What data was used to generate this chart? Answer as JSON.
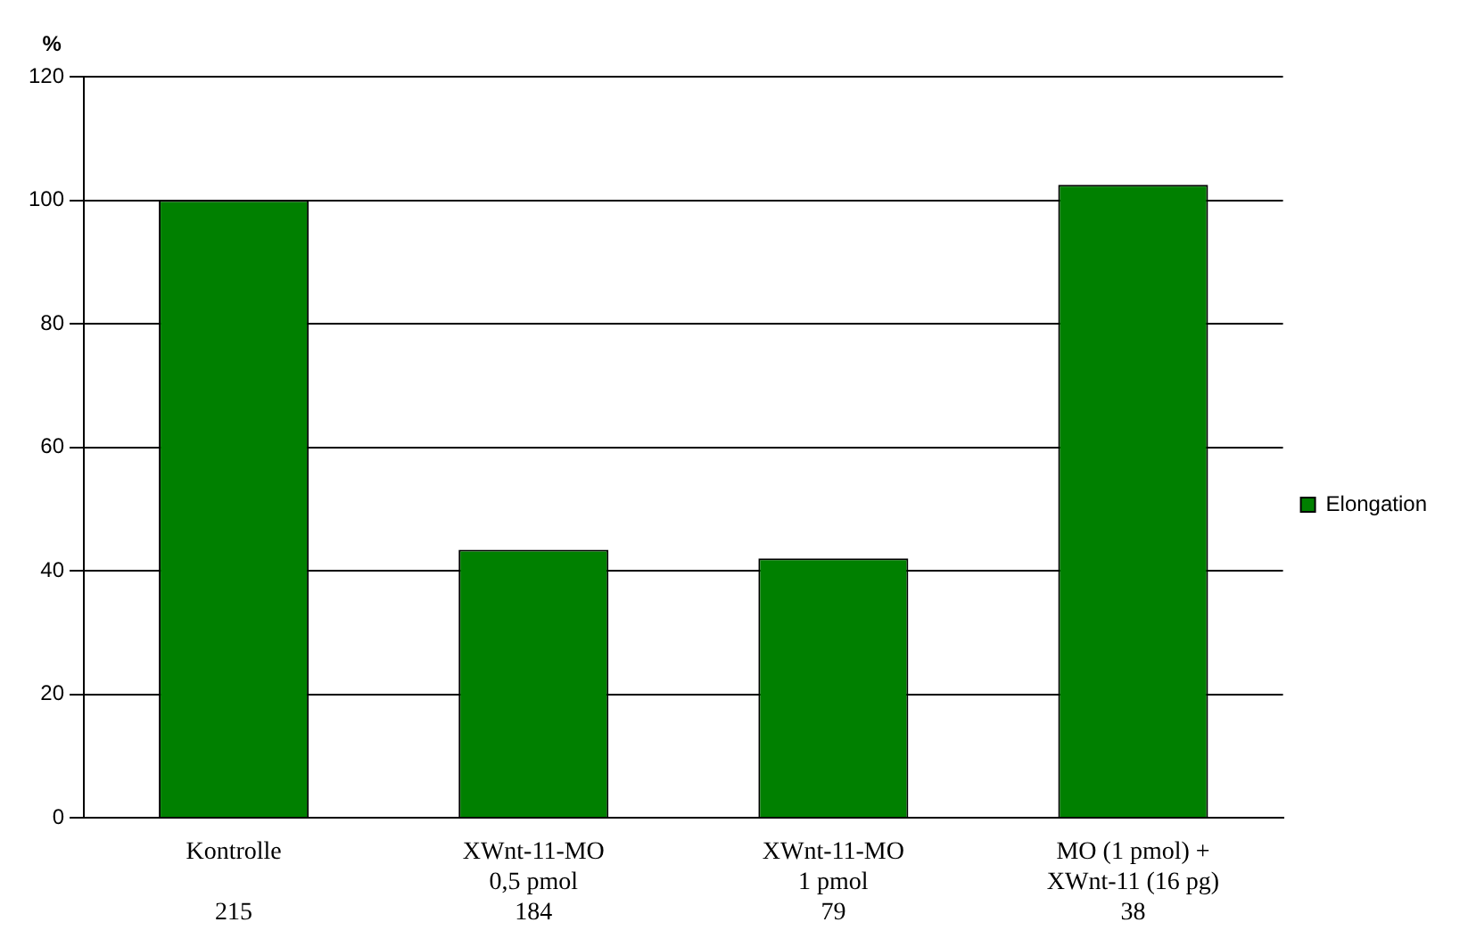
{
  "chart_data": {
    "type": "bar",
    "ylabel": "%",
    "categories": [
      "Kontrolle\n\n215",
      "XWnt-11-MO\n0,5 pmol\n184",
      "XWnt-11-MO\n1 pmol\n79",
      "MO (1 pmol) +\nXWnt-11 (16 pg)\n38"
    ],
    "series": [
      {
        "name": "Elongation",
        "color": "#008000",
        "values": [
          100,
          43.4,
          42,
          102.5
        ]
      }
    ],
    "ylim": [
      0,
      120
    ],
    "yticks": [
      0,
      20,
      40,
      60,
      80,
      100,
      120
    ],
    "grid": "y",
    "legend": "right"
  }
}
